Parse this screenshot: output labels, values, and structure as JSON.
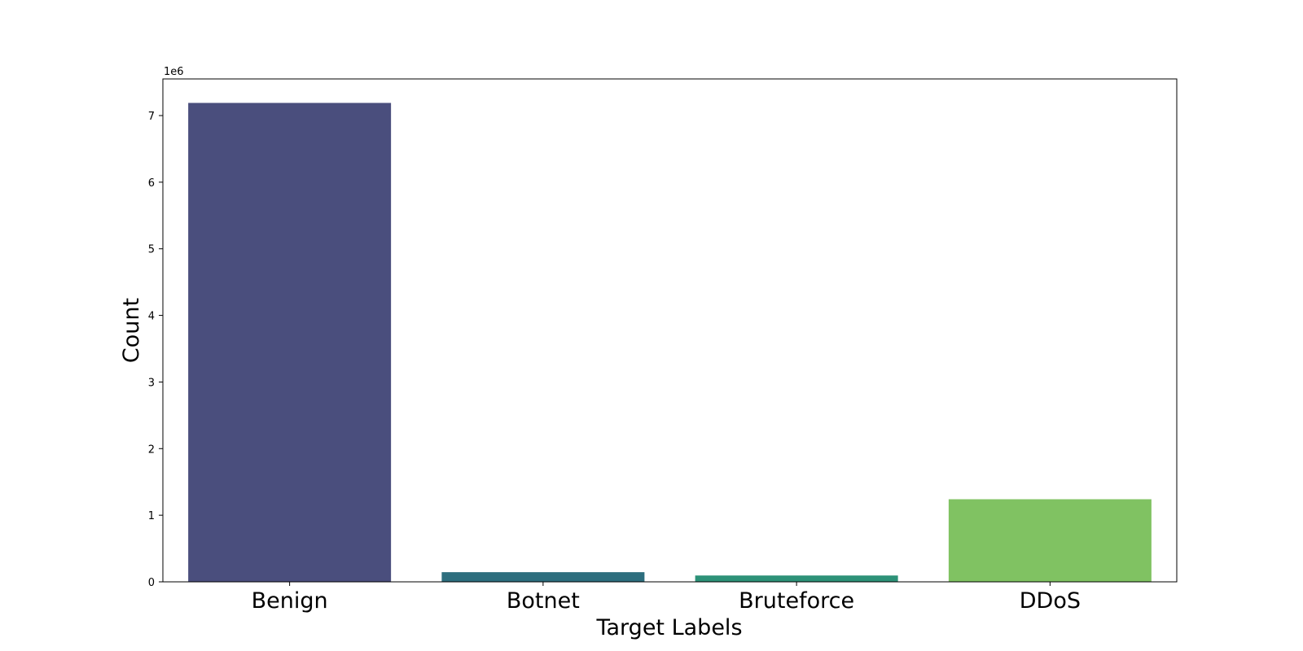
{
  "chart_data": {
    "type": "bar",
    "categories": [
      "Benign",
      "Botnet",
      "Bruteforce",
      "DDoS"
    ],
    "values": [
      7190000,
      145000,
      95000,
      1240000
    ],
    "colors": [
      "#4a4e7d",
      "#2d6e7e",
      "#2d9278",
      "#80c262"
    ],
    "title": "",
    "xlabel": "Target Labels",
    "ylabel": "Count",
    "ylim": [
      0,
      7550000
    ],
    "yticks": [
      0,
      1,
      2,
      3,
      4,
      5,
      6,
      7
    ],
    "ytick_multiplier": 1000000,
    "offset_text": "1e6",
    "grid": false,
    "legend": "none"
  }
}
